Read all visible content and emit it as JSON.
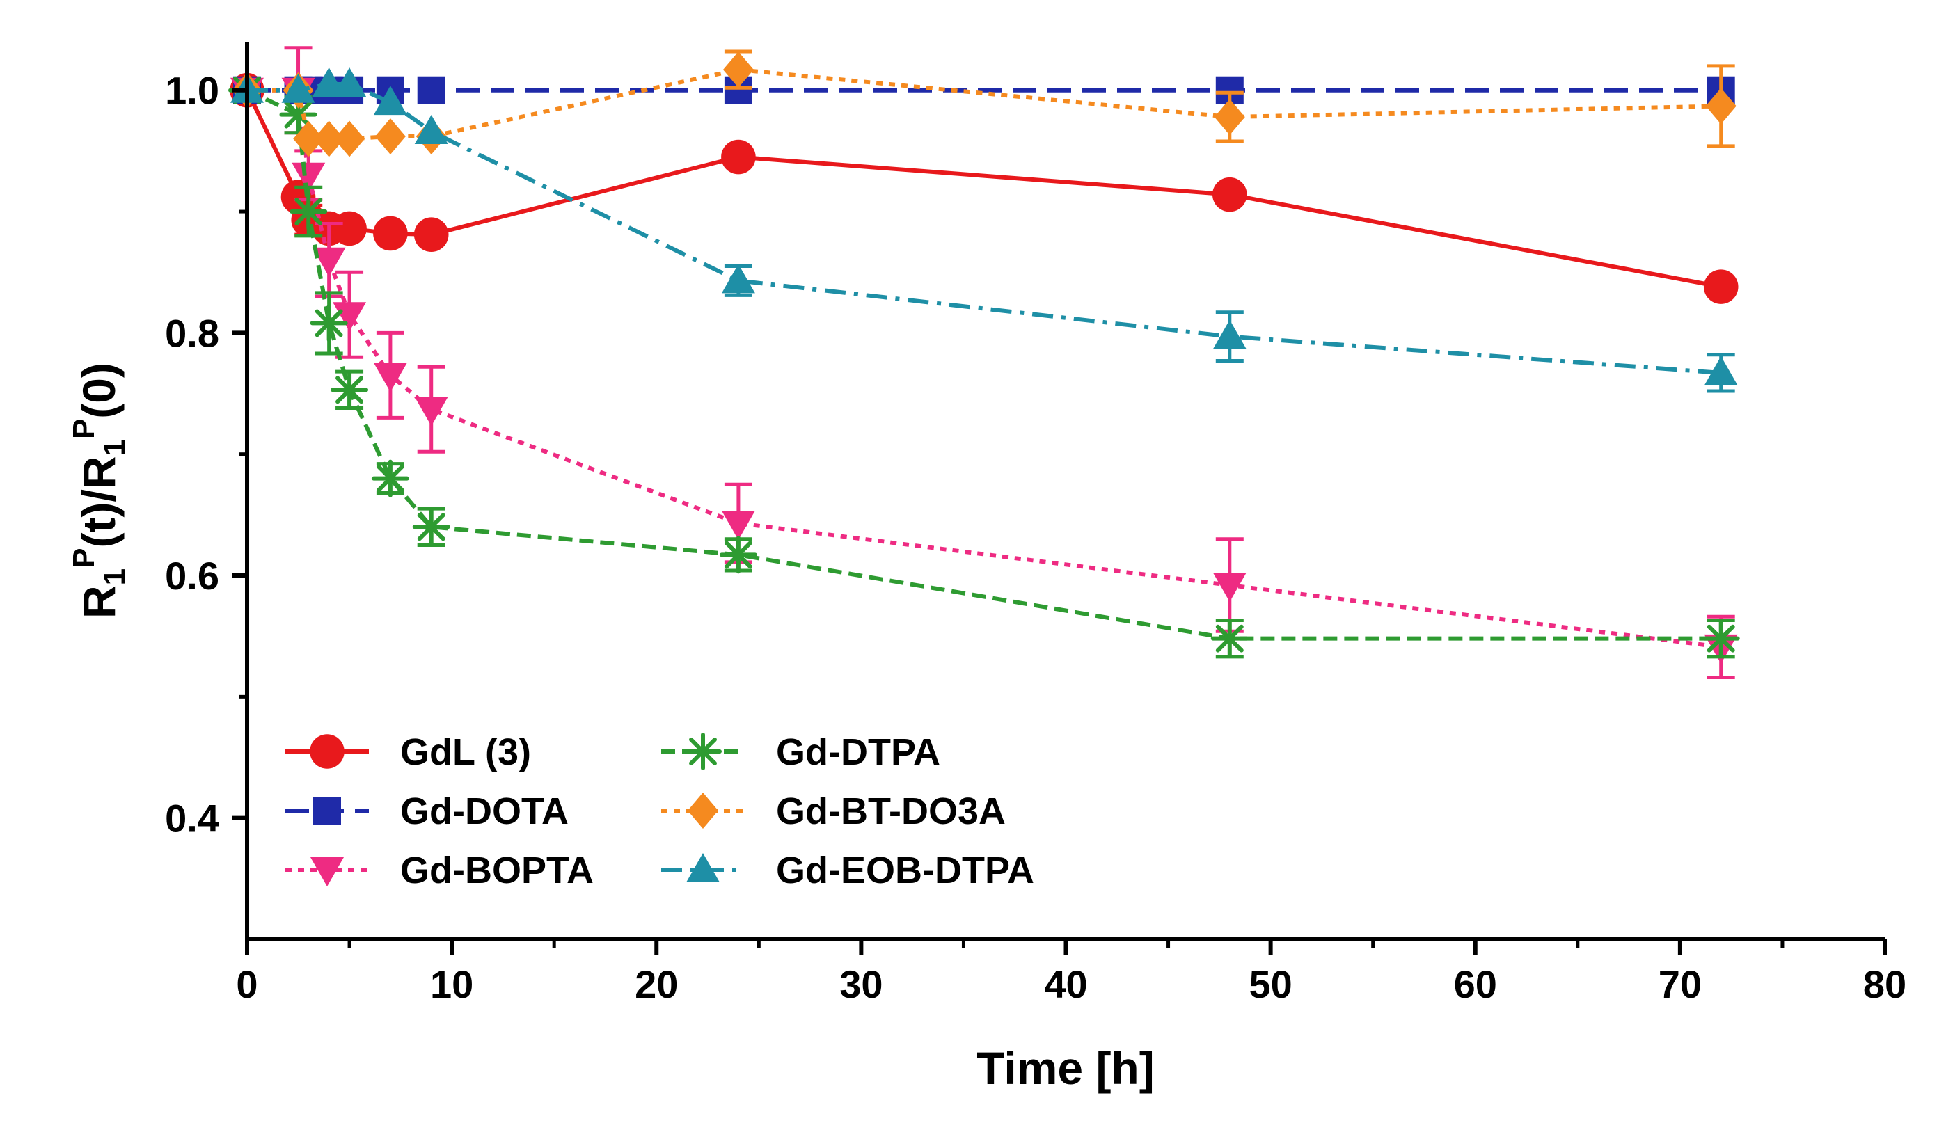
{
  "chart_data": {
    "type": "line",
    "xlabel": "Time [h]",
    "ylabel": {
      "main1": "R",
      "sub1": "1",
      "sup1": "P",
      "mid": "(t)/R",
      "sub2": "1",
      "sup2": "P",
      "end": "(0)"
    },
    "xlim": [
      0,
      80
    ],
    "ylim": [
      0.3,
      1.04
    ],
    "x_ticks": [
      0,
      10,
      20,
      30,
      40,
      50,
      60,
      70,
      80
    ],
    "x_tick_labels": [
      "0",
      "10",
      "20",
      "30",
      "40",
      "50",
      "60",
      "70",
      "80"
    ],
    "x_minor_ticks": [
      5,
      15,
      25,
      35,
      45,
      55,
      65,
      75
    ],
    "y_ticks": [
      0.4,
      0.6,
      0.8,
      1.0
    ],
    "y_tick_labels": [
      "0.4",
      "0.6",
      "0.8",
      "1.0"
    ],
    "y_minor_ticks": [
      0.5,
      0.7,
      0.9
    ],
    "grid": false,
    "legend_position": "bottom-left",
    "series": [
      {
        "name": "GdL (3)",
        "color": "#e8191c",
        "marker": "circle",
        "dash": "solid",
        "x": [
          0,
          2.5,
          3,
          4,
          5,
          7,
          9,
          24,
          48,
          72
        ],
        "y": [
          1.0,
          0.912,
          0.893,
          0.886,
          0.886,
          0.882,
          0.881,
          0.945,
          0.914,
          0.838
        ],
        "err": [
          0,
          0,
          0.012,
          0,
          0,
          0,
          0,
          0,
          0,
          0
        ]
      },
      {
        "name": "Gd-DOTA",
        "color": "#1f2aa8",
        "marker": "square",
        "dash": "dash",
        "x": [
          0,
          2.5,
          3,
          4,
          5,
          7,
          9,
          24,
          48,
          72
        ],
        "y": [
          1.0,
          1.0,
          1.0,
          1.0,
          1.0,
          1.0,
          1.0,
          1.0,
          1.0,
          1.0
        ],
        "err": [
          0,
          0,
          0,
          0,
          0,
          0,
          0,
          0,
          0,
          0
        ]
      },
      {
        "name": "Gd-BOPTA",
        "color": "#ee2b82",
        "marker": "triangle-down",
        "dash": "dot",
        "x": [
          0,
          2.5,
          3,
          4,
          5,
          7,
          9,
          24,
          48,
          72
        ],
        "y": [
          1.0,
          1.0,
          0.93,
          0.86,
          0.815,
          0.765,
          0.737,
          0.643,
          0.592,
          0.541
        ],
        "err": [
          0,
          0.035,
          0.02,
          0.03,
          0.035,
          0.035,
          0.035,
          0.032,
          0.038,
          0.025
        ]
      },
      {
        "name": "Gd-DTPA",
        "color": "#2e9b31",
        "marker": "asterisk",
        "dash": "dashfine",
        "x": [
          0,
          2.5,
          3,
          4,
          5,
          7,
          9,
          24,
          48,
          72
        ],
        "y": [
          1.0,
          0.98,
          0.9,
          0.808,
          0.753,
          0.68,
          0.64,
          0.617,
          0.548,
          0.548
        ],
        "err": [
          0,
          0.015,
          0.02,
          0.025,
          0.015,
          0.012,
          0.015,
          0.013,
          0.015,
          0.015
        ]
      },
      {
        "name": "Gd-BT-DO3A",
        "color": "#f58a1f",
        "marker": "diamond",
        "dash": "dot",
        "x": [
          0,
          2.5,
          3,
          4,
          5,
          7,
          9,
          24,
          48,
          72
        ],
        "y": [
          1.0,
          1.0,
          0.96,
          0.96,
          0.96,
          0.962,
          0.962,
          1.017,
          0.978,
          0.987
        ],
        "err": [
          0,
          0,
          0,
          0,
          0,
          0,
          0,
          0.015,
          0.02,
          0.033
        ]
      },
      {
        "name": "Gd-EOB-DTPA",
        "color": "#1e8fa6",
        "marker": "triangle-up",
        "dash": "dashdot",
        "x": [
          0,
          2.5,
          4,
          5,
          7,
          9,
          24,
          48,
          72
        ],
        "y": [
          1.0,
          1.0,
          1.005,
          1.005,
          0.99,
          0.966,
          0.843,
          0.797,
          0.767
        ],
        "err": [
          0,
          0,
          0,
          0,
          0,
          0,
          0.012,
          0.02,
          0.015
        ]
      }
    ]
  }
}
